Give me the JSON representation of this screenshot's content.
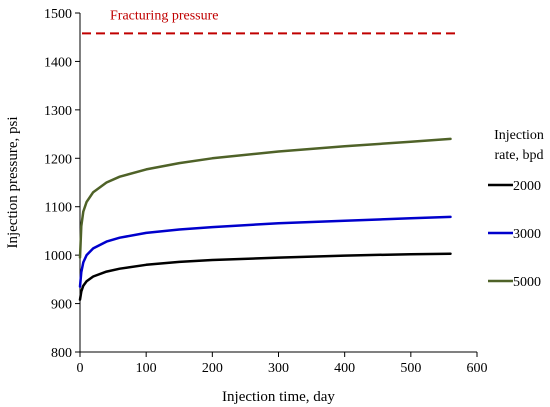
{
  "chart_data": {
    "type": "line",
    "title": "",
    "xlabel": "Injection time, day",
    "ylabel": "Injection pressure, psi",
    "xlim": [
      0,
      600
    ],
    "ylim": [
      800,
      1500
    ],
    "xticks": [
      0,
      100,
      200,
      300,
      400,
      500,
      600
    ],
    "yticks": [
      800,
      900,
      1000,
      1100,
      1200,
      1300,
      1400,
      1500
    ],
    "grid": false,
    "legend": {
      "title_line1": "Injection",
      "title_line2": "rate, bpd",
      "position": "right"
    },
    "series": [
      {
        "name": "2000",
        "color": "#000000",
        "x": [
          0,
          2,
          5,
          10,
          20,
          40,
          60,
          100,
          150,
          200,
          300,
          400,
          500,
          560
        ],
        "y": [
          908,
          925,
          937,
          946,
          956,
          966,
          972,
          980,
          986,
          990,
          995,
          999,
          1002,
          1003
        ]
      },
      {
        "name": "3000",
        "color": "#0000cc",
        "x": [
          0,
          2,
          5,
          10,
          20,
          40,
          60,
          100,
          150,
          200,
          300,
          400,
          500,
          560
        ],
        "y": [
          935,
          965,
          985,
          1000,
          1014,
          1028,
          1036,
          1046,
          1053,
          1058,
          1066,
          1071,
          1076,
          1079
        ]
      },
      {
        "name": "5000",
        "color": "#4f6228",
        "x": [
          0,
          2,
          5,
          10,
          20,
          40,
          60,
          100,
          150,
          200,
          300,
          400,
          500,
          560
        ],
        "y": [
          995,
          1060,
          1090,
          1110,
          1130,
          1150,
          1162,
          1177,
          1190,
          1200,
          1214,
          1225,
          1234,
          1240
        ]
      }
    ],
    "annotations": [
      {
        "text": "Fracturing pressure",
        "y": 1458,
        "color": "#c00000",
        "style": "dashed"
      }
    ]
  }
}
